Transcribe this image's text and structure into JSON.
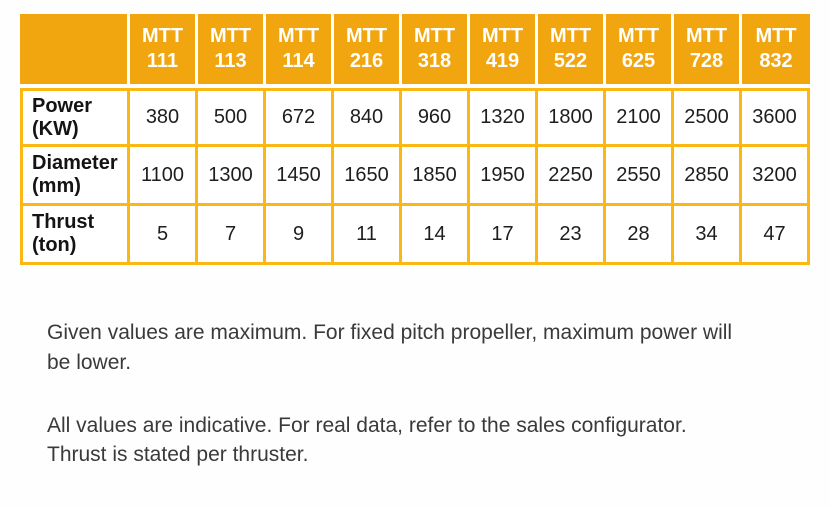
{
  "colors": {
    "header_bg": "#F1A50E",
    "header_text": "#FFFFFF",
    "grid_border": "#FBB713",
    "cell_text": "#1E1E1E",
    "note_text": "#3A3A3A"
  },
  "table": {
    "corner_label": "",
    "columns": [
      {
        "line1": "MTT",
        "line2": "111"
      },
      {
        "line1": "MTT",
        "line2": "113"
      },
      {
        "line1": "MTT",
        "line2": "114"
      },
      {
        "line1": "MTT",
        "line2": "216"
      },
      {
        "line1": "MTT",
        "line2": "318"
      },
      {
        "line1": "MTT",
        "line2": "419"
      },
      {
        "line1": "MTT",
        "line2": "522"
      },
      {
        "line1": "MTT",
        "line2": "625"
      },
      {
        "line1": "MTT",
        "line2": "728"
      },
      {
        "line1": "MTT",
        "line2": "832"
      }
    ],
    "rows": [
      {
        "label_line1": "Power",
        "label_line2": "(KW)",
        "values": [
          "380",
          "500",
          "672",
          "840",
          "960",
          "1320",
          "1800",
          "2100",
          "2500",
          "3600"
        ]
      },
      {
        "label_line1": "Diameter",
        "label_line2": "(mm)",
        "values": [
          "1100",
          "1300",
          "1450",
          "1650",
          "1850",
          "1950",
          "2250",
          "2550",
          "2850",
          "3200"
        ]
      },
      {
        "label_line1": "Thrust",
        "label_line2": "(ton)",
        "values": [
          "5",
          "7",
          "9",
          "11",
          "14",
          "17",
          "23",
          "28",
          "34",
          "47"
        ]
      }
    ]
  },
  "notes": [
    {
      "lines": [
        "Given values are maximum. For fixed pitch propeller, maximum power will",
        "be lower."
      ]
    },
    {
      "lines": [
        "All values are indicative. For real data, refer to the sales configurator.",
        "Thrust is stated per thruster."
      ]
    }
  ]
}
